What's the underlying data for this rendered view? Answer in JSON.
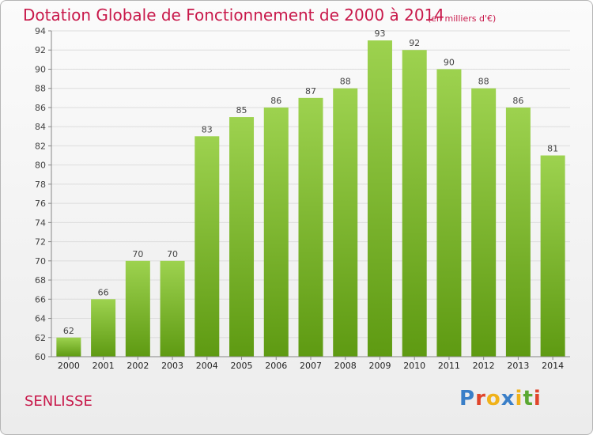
{
  "header": {
    "title": "Dotation Globale de Fonctionnement de 2000 à 2014",
    "subtitle": "(en milliers d'€)"
  },
  "footer": {
    "commune": "SENLISSE",
    "logo_text": "Proxiti",
    "logo_colors": [
      "#3a7fc8",
      "#e0452b",
      "#f0b21a",
      "#3a7fc8",
      "#f0b21a",
      "#5aa832",
      "#e0452b"
    ]
  },
  "colors": {
    "accent": "#c8184a",
    "bar_top": "#9dd24f",
    "bar_bottom": "#5e9a12"
  },
  "chart_data": {
    "type": "bar",
    "title": "Dotation Globale de Fonctionnement de 2000 à 2014",
    "subtitle": "(en milliers d'€)",
    "xlabel": "",
    "ylabel": "",
    "categories": [
      "2000",
      "2001",
      "2002",
      "2003",
      "2004",
      "2005",
      "2006",
      "2007",
      "2008",
      "2009",
      "2010",
      "2011",
      "2012",
      "2013",
      "2014"
    ],
    "values": [
      62,
      66,
      70,
      70,
      83,
      85,
      86,
      87,
      88,
      93,
      92,
      90,
      88,
      86,
      81
    ],
    "ylim": [
      60,
      94
    ],
    "yticks": [
      60,
      62,
      64,
      66,
      68,
      70,
      72,
      74,
      76,
      78,
      80,
      82,
      84,
      86,
      88,
      90,
      92,
      94
    ],
    "grid": true,
    "legend": "none"
  }
}
